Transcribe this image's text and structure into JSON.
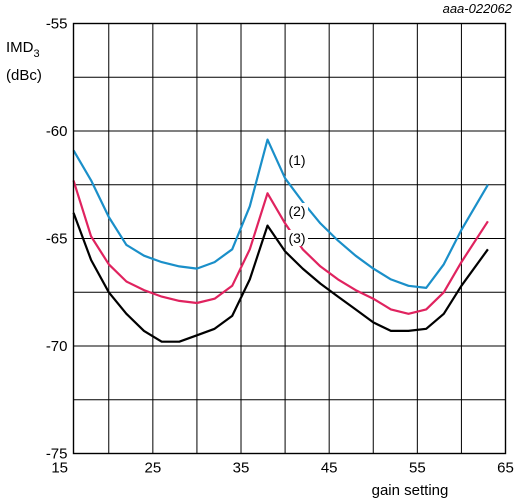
{
  "doc_id": "aaa-022062",
  "chart_data": {
    "type": "line",
    "title": "",
    "xlabel": "gain setting",
    "ylabel": {
      "main": "IMD",
      "sub": "3",
      "unit": "(dBc)"
    },
    "xlim": [
      16,
      65
    ],
    "ylim": [
      -75,
      -55
    ],
    "x_ticks": [
      15,
      25,
      35,
      45,
      55,
      65
    ],
    "x_tick_labels": [
      "15",
      "25",
      "35",
      "45",
      "55",
      "65"
    ],
    "y_ticks": [
      -75,
      -70,
      -65,
      -60,
      -55
    ],
    "y_tick_labels": [
      "-75",
      "-70",
      "-65",
      "-60",
      "-55"
    ],
    "grid": true,
    "series": [
      {
        "name": "(1)",
        "color": "#1a8fc9",
        "x": [
          16,
          18,
          20,
          22,
          24,
          26,
          28,
          30,
          32,
          34,
          36,
          38,
          40,
          42,
          44,
          46,
          48,
          50,
          52,
          54,
          56,
          58,
          60,
          63
        ],
        "y": [
          -60.9,
          -62.3,
          -64.0,
          -65.3,
          -65.8,
          -66.1,
          -66.3,
          -66.4,
          -66.1,
          -65.5,
          -63.5,
          -60.4,
          -62.2,
          -63.3,
          -64.3,
          -65.1,
          -65.8,
          -66.4,
          -66.9,
          -67.2,
          -67.3,
          -66.2,
          -64.6,
          -62.5
        ]
      },
      {
        "name": "(2)",
        "color": "#e0235f",
        "x": [
          16,
          18,
          20,
          22,
          24,
          26,
          28,
          30,
          32,
          34,
          36,
          38,
          40,
          42,
          44,
          46,
          48,
          50,
          52,
          54,
          56,
          58,
          60,
          63
        ],
        "y": [
          -62.3,
          -64.9,
          -66.2,
          -67.0,
          -67.4,
          -67.7,
          -67.9,
          -68.0,
          -67.8,
          -67.2,
          -65.5,
          -62.9,
          -64.3,
          -65.5,
          -66.3,
          -66.9,
          -67.4,
          -67.8,
          -68.3,
          -68.5,
          -68.3,
          -67.5,
          -66.1,
          -64.2
        ]
      },
      {
        "name": "(3)",
        "color": "#000000",
        "x": [
          16,
          18,
          20,
          22,
          24,
          26,
          28,
          30,
          32,
          34,
          36,
          38,
          40,
          42,
          44,
          46,
          48,
          50,
          52,
          54,
          56,
          58,
          60,
          63
        ],
        "y": [
          -63.8,
          -66.0,
          -67.5,
          -68.5,
          -69.3,
          -69.8,
          -69.8,
          -69.5,
          -69.2,
          -68.6,
          -66.9,
          -64.4,
          -65.6,
          -66.4,
          -67.1,
          -67.7,
          -68.3,
          -68.9,
          -69.3,
          -69.3,
          -69.2,
          -68.5,
          -67.2,
          -65.5
        ]
      }
    ]
  }
}
